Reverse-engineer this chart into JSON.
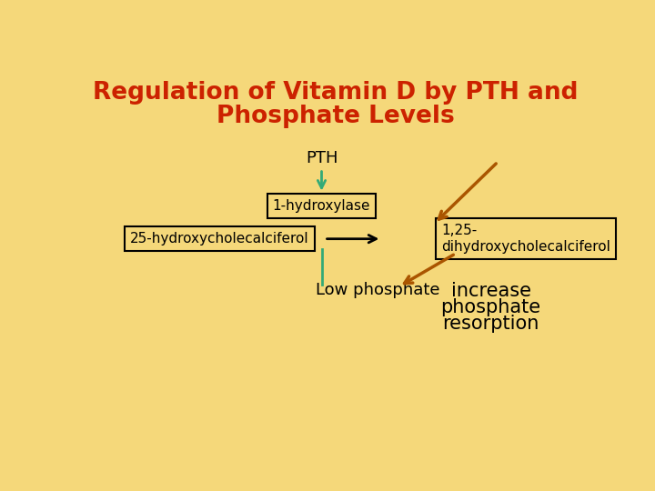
{
  "title_line1": "Regulation of Vitamin D by PTH and",
  "title_line2": "Phosphate Levels",
  "title_color": "#CC2200",
  "bg_color": "#F5D87A",
  "label_pth": "PTH",
  "label_hydroxylase": "1-hydroxylase",
  "label_25hydroxy": "25-hydroxycholecalciferol",
  "label_125dihydroxy": "1,25-\ndihydroxycholecalciferol",
  "label_low_phosphate": "Low phosphate",
  "label_increase_line1": "increase",
  "label_increase_line2": "phosphate",
  "label_increase_line3": "resorption",
  "green_color": "#33AA77",
  "brown_color": "#AA5500",
  "black_color": "#000000",
  "box_color": "#000000",
  "text_color": "#000000",
  "title_fontsize": 19,
  "label_fontsize": 13,
  "small_fontsize": 11,
  "increase_fontsize": 15
}
